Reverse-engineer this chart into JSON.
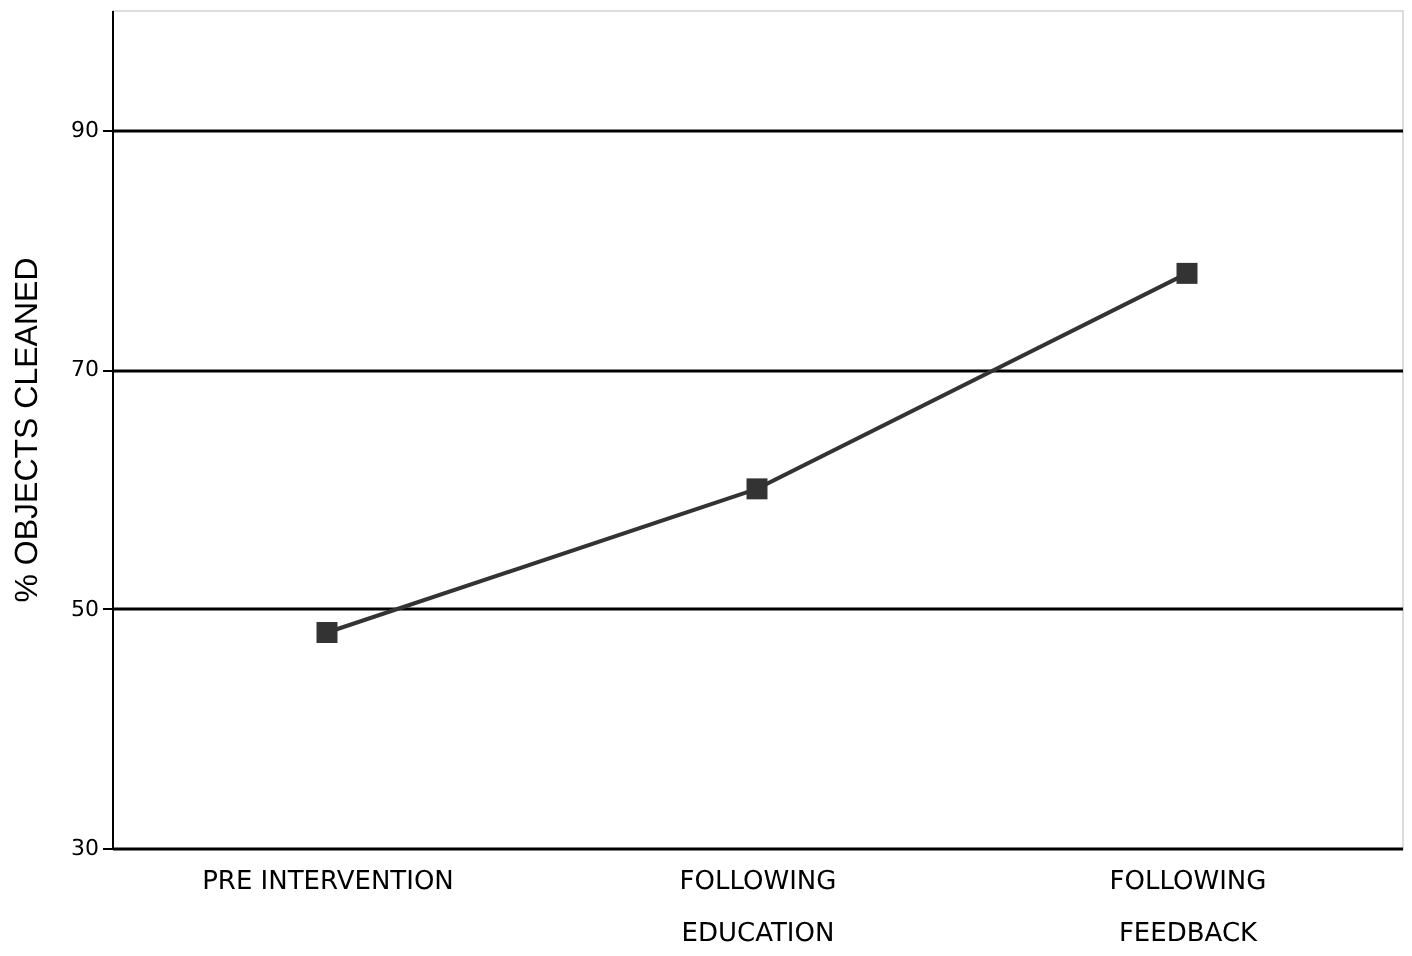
{
  "chart_data": {
    "type": "line",
    "ylabel": "% OBJECTS CLEANED",
    "categories": [
      "PRE INTERVENTION",
      "FOLLOWING\nEDUCATION",
      "FOLLOWING\nFEEDBACK"
    ],
    "series": [
      {
        "color": "#333333",
        "values": [
          48,
          60,
          78
        ]
      }
    ],
    "ylim": [
      30,
      100
    ],
    "yticks": [
      30,
      50,
      70,
      90
    ],
    "grid": "y",
    "marker": "square",
    "line_style": "solid",
    "legend": false
  }
}
